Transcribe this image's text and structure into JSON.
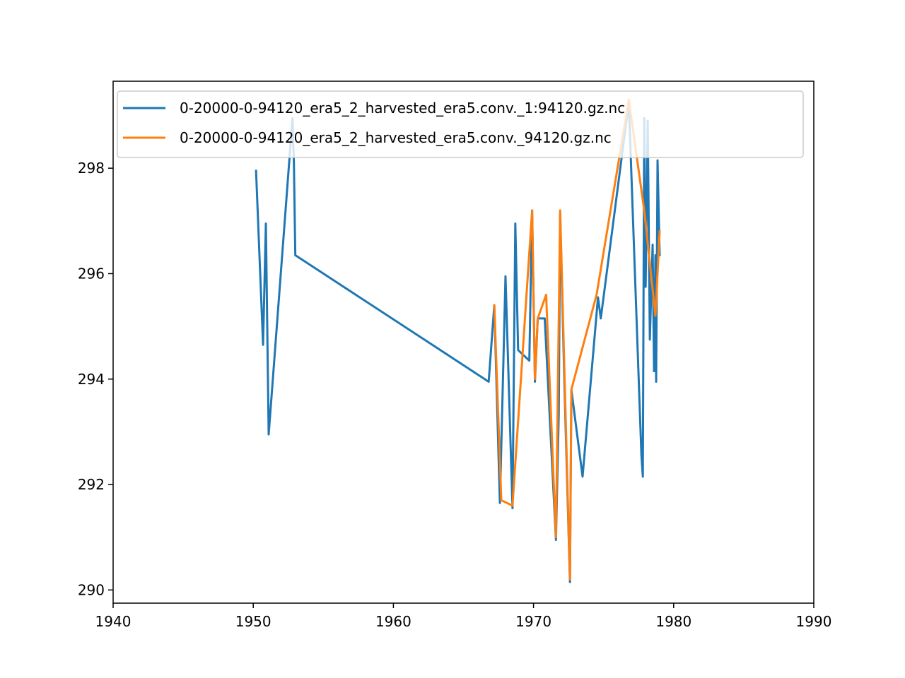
{
  "chart_data": {
    "type": "line",
    "title": "",
    "xlabel": "",
    "ylabel": "",
    "xlim": [
      1940,
      1990
    ],
    "ylim": [
      289.75,
      299.65
    ],
    "x_ticks": [
      1940,
      1950,
      1960,
      1970,
      1980,
      1990
    ],
    "y_ticks": [
      290,
      292,
      294,
      296,
      298
    ],
    "grid": false,
    "legend_position": "top-left",
    "series": [
      {
        "name": "0-20000-0-94120_era5_2_harvested_era5.conv._1:94120.gz.nc",
        "color": "#1f77b4",
        "points": [
          [
            1950.2,
            297.95
          ],
          [
            1950.7,
            294.65
          ],
          [
            1950.9,
            296.95
          ],
          [
            1951.1,
            292.95
          ],
          [
            1952.8,
            298.95
          ],
          [
            1952.9,
            298.1
          ],
          [
            1953.0,
            296.35
          ],
          [
            1966.8,
            293.95
          ],
          [
            1967.2,
            295.4
          ],
          [
            1967.6,
            291.65
          ],
          [
            1968.0,
            295.95
          ],
          [
            1968.5,
            291.55
          ],
          [
            1968.7,
            296.95
          ],
          [
            1968.9,
            294.55
          ],
          [
            1969.7,
            294.35
          ],
          [
            1969.9,
            297.2
          ],
          [
            1970.1,
            293.95
          ],
          [
            1970.3,
            295.15
          ],
          [
            1970.8,
            295.15
          ],
          [
            1971.6,
            290.95
          ],
          [
            1971.8,
            293.35
          ],
          [
            1971.9,
            297.15
          ],
          [
            1972.2,
            293.95
          ],
          [
            1972.6,
            290.15
          ],
          [
            1972.7,
            293.8
          ],
          [
            1973.5,
            292.15
          ],
          [
            1974.6,
            295.55
          ],
          [
            1974.8,
            295.15
          ],
          [
            1976.8,
            299.25
          ],
          [
            1977.7,
            292.55
          ],
          [
            1977.8,
            292.15
          ],
          [
            1977.9,
            298.95
          ],
          [
            1978.0,
            295.75
          ],
          [
            1978.15,
            298.9
          ],
          [
            1978.3,
            294.75
          ],
          [
            1978.5,
            296.55
          ],
          [
            1978.6,
            294.15
          ],
          [
            1978.7,
            296.35
          ],
          [
            1978.75,
            293.95
          ],
          [
            1978.85,
            298.15
          ],
          [
            1979.0,
            296.35
          ]
        ]
      },
      {
        "name": "0-20000-0-94120_era5_2_harvested_era5.conv._94120.gz.nc",
        "color": "#ff7f0e",
        "points": [
          [
            1967.2,
            295.4
          ],
          [
            1967.7,
            291.7
          ],
          [
            1968.5,
            291.6
          ],
          [
            1969.9,
            297.2
          ],
          [
            1970.1,
            294.0
          ],
          [
            1970.3,
            295.15
          ],
          [
            1970.9,
            295.6
          ],
          [
            1971.6,
            291.0
          ],
          [
            1971.9,
            297.2
          ],
          [
            1972.6,
            290.2
          ],
          [
            1972.7,
            293.8
          ],
          [
            1974.5,
            295.6
          ],
          [
            1976.8,
            299.3
          ],
          [
            1977.9,
            297.2
          ],
          [
            1978.7,
            295.2
          ],
          [
            1979.0,
            296.8
          ]
        ]
      }
    ]
  }
}
